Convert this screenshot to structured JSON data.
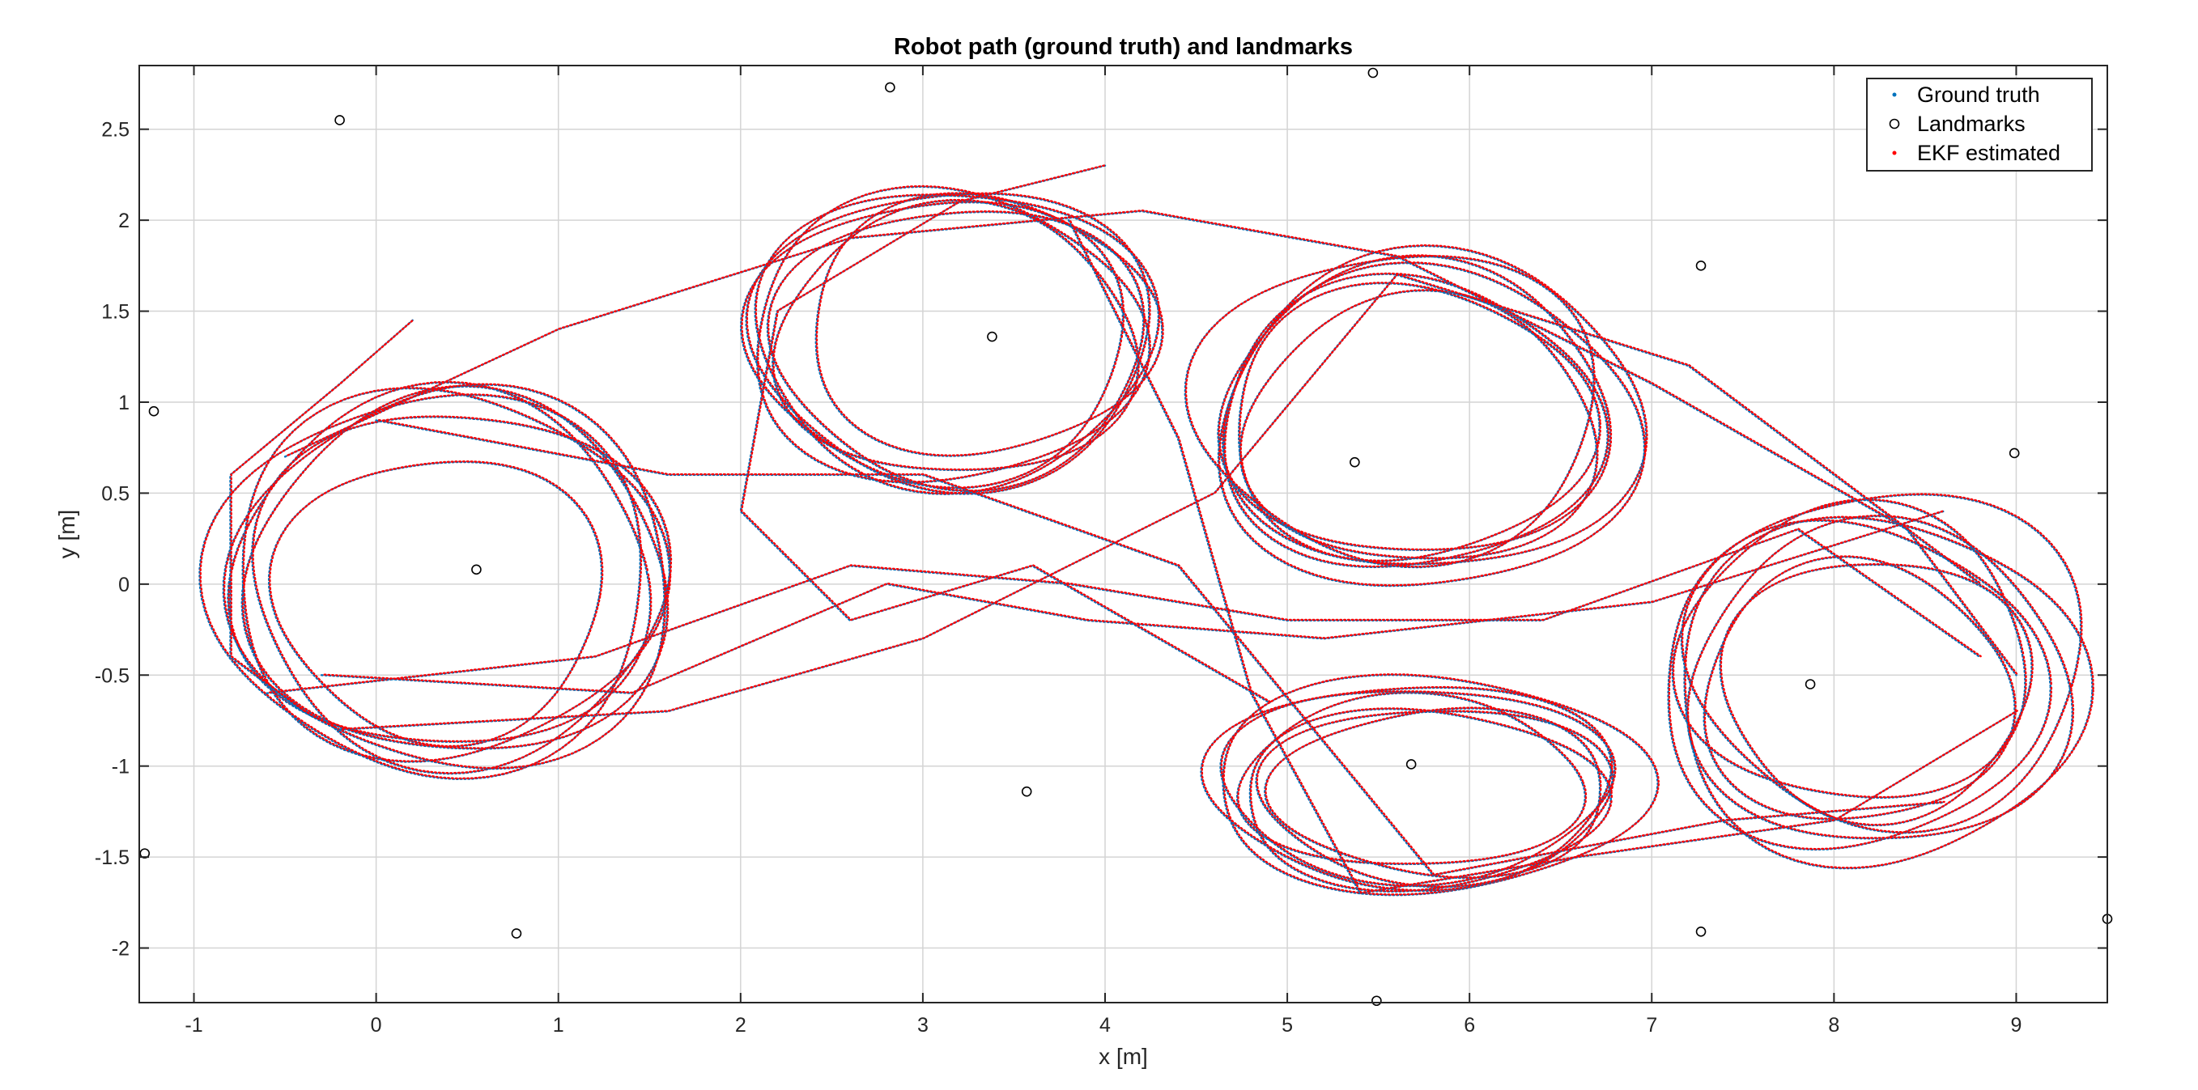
{
  "chart_data": {
    "type": "scatter",
    "title": "Robot path (ground truth) and landmarks",
    "xlabel": "x [m]",
    "ylabel": "y [m]",
    "xlim": [
      -1.3,
      9.5
    ],
    "ylim": [
      -2.3,
      2.85
    ],
    "grid": true,
    "legend_position": "top-right",
    "x_ticks": [
      -1,
      0,
      1,
      2,
      3,
      4,
      5,
      6,
      7,
      8,
      9
    ],
    "x_tick_labels": [
      "-1",
      "0",
      "1",
      "2",
      "3",
      "4",
      "5",
      "6",
      "7",
      "8",
      "9"
    ],
    "y_ticks": [
      2.5,
      2,
      1.5,
      1,
      0.5,
      0,
      -0.5,
      -1,
      -1.5,
      -2
    ],
    "y_tick_labels": [
      "2.5",
      "2",
      "1.5",
      "1",
      "0.5",
      "0",
      "-0.5",
      "-1",
      "-1.5",
      "-2"
    ],
    "colors": {
      "ground_truth": "#0072BD",
      "ekf": "#FF0000",
      "landmarks": "#000000"
    },
    "series": [
      {
        "name": "Ground truth",
        "marker": "dot",
        "color": "#0072BD",
        "loop_centers": [
          [
            0.4,
            0.0
          ],
          [
            3.2,
            1.4
          ],
          [
            5.7,
            0.9
          ],
          [
            8.2,
            -0.5
          ],
          [
            5.8,
            -1.2
          ]
        ],
        "loop_radii": [
          [
            1.1,
            0.95
          ],
          [
            1.0,
            0.75
          ],
          [
            1.05,
            0.8
          ],
          [
            1.0,
            0.85
          ],
          [
            1.1,
            0.55
          ]
        ]
      },
      {
        "name": "Landmarks",
        "marker": "circle",
        "color": "#000000",
        "points": [
          [
            -0.2,
            2.55
          ],
          [
            2.82,
            2.73
          ],
          [
            5.47,
            2.81
          ],
          [
            7.27,
            1.75
          ],
          [
            3.38,
            1.36
          ],
          [
            -1.22,
            0.95
          ],
          [
            5.37,
            0.67
          ],
          [
            8.99,
            0.72
          ],
          [
            0.55,
            0.08
          ],
          [
            7.87,
            -0.55
          ],
          [
            5.68,
            -0.99
          ],
          [
            3.57,
            -1.14
          ],
          [
            -1.27,
            -1.48
          ],
          [
            0.77,
            -1.92
          ],
          [
            7.27,
            -1.91
          ],
          [
            5.49,
            -2.29
          ],
          [
            9.5,
            -1.84
          ]
        ]
      },
      {
        "name": "EKF estimated",
        "marker": "dot",
        "color": "#FF0000"
      }
    ]
  }
}
